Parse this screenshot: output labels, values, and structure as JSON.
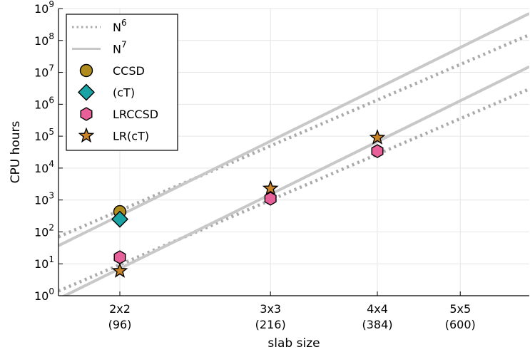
{
  "chart_data": {
    "type": "scatter",
    "xscale": "log",
    "yscale": "log",
    "xlabel": "slab size",
    "ylabel": "CPU hours",
    "xlim": [
      69,
      870
    ],
    "ylim": [
      1,
      1000000000
    ],
    "grid": true,
    "legend_position": "top-left",
    "x_ticks": [
      {
        "value": 96,
        "line1": "2x2",
        "line2": "(96)"
      },
      {
        "value": 216,
        "line1": "3x3",
        "line2": "(216)"
      },
      {
        "value": 384,
        "line1": "4x4",
        "line2": "(384)"
      },
      {
        "value": 600,
        "line1": "5x5",
        "line2": "(600)"
      }
    ],
    "y_ticks": [
      {
        "value": 1,
        "base": "10",
        "exp": "0"
      },
      {
        "value": 10,
        "base": "10",
        "exp": "1"
      },
      {
        "value": 100,
        "base": "10",
        "exp": "2"
      },
      {
        "value": 1000,
        "base": "10",
        "exp": "3"
      },
      {
        "value": 10000,
        "base": "10",
        "exp": "4"
      },
      {
        "value": 100000,
        "base": "10",
        "exp": "5"
      },
      {
        "value": 1000000,
        "base": "10",
        "exp": "6"
      },
      {
        "value": 10000000,
        "base": "10",
        "exp": "7"
      },
      {
        "value": 100000000,
        "base": "10",
        "exp": "8"
      },
      {
        "value": 1000000000,
        "base": "10",
        "exp": "9"
      }
    ],
    "reference_lines": [
      {
        "legend_base": "N",
        "legend_exp": "6",
        "power": 6,
        "style": "dotted",
        "color": "#aaaaaa",
        "instances": [
          {
            "x": [
              69,
              870
            ],
            "y": [
              70,
              150000000.0
            ]
          },
          {
            "x": [
              69,
              870
            ],
            "y": [
              1.4,
              3000000.0
            ]
          }
        ]
      },
      {
        "legend_base": "N",
        "legend_exp": "7",
        "power": 7,
        "style": "solid",
        "color": "#c8c8c8",
        "instances": [
          {
            "x": [
              69,
              870
            ],
            "y": [
              37,
              700000000.0
            ]
          },
          {
            "x": [
              69,
              870
            ],
            "y": [
              0.8,
              15000000.0
            ]
          }
        ]
      }
    ],
    "series": [
      {
        "name": "CCSD",
        "marker": "circle",
        "color": "#b08c1e",
        "points": [
          {
            "x": 96,
            "y": 430
          }
        ]
      },
      {
        "name": "(cT)",
        "marker": "diamond",
        "color": "#18a4a4",
        "points": [
          {
            "x": 96,
            "y": 250
          }
        ]
      },
      {
        "name": "LRCCSD",
        "marker": "hexagon",
        "color": "#e8609a",
        "points": [
          {
            "x": 96,
            "y": 16
          },
          {
            "x": 216,
            "y": 1100
          },
          {
            "x": 384,
            "y": 34000
          }
        ]
      },
      {
        "name": "LR(cT)",
        "marker": "star",
        "color": "#c98428",
        "points": [
          {
            "x": 96,
            "y": 6
          },
          {
            "x": 216,
            "y": 2300
          },
          {
            "x": 384,
            "y": 90000
          }
        ]
      }
    ]
  }
}
